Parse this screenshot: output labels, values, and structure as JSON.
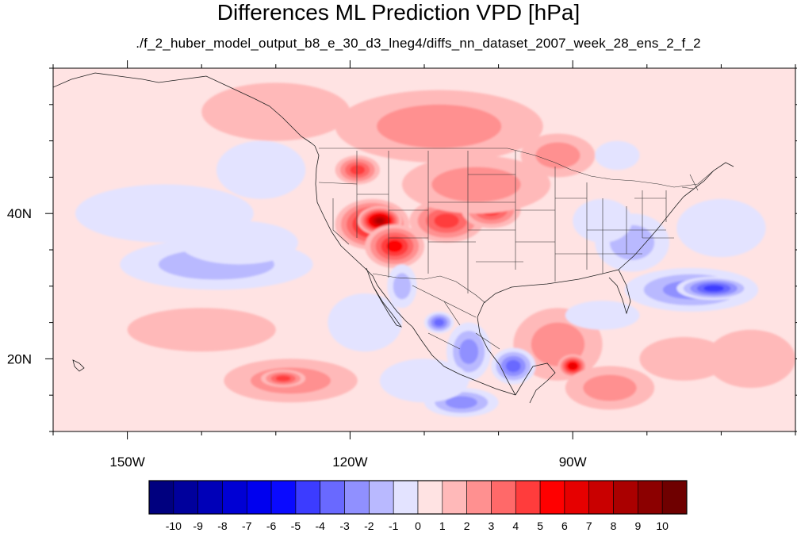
{
  "title": "Differences ML Prediction VPD [hPa]",
  "subtitle": "./f_2_huber_model_output_b8_e_30_d3_lneg4/diffs_nn_dataset_2007_week_28_ens_2_f_2",
  "map": {
    "lon_range": [
      -160,
      -60
    ],
    "lat_range": [
      10,
      60
    ],
    "lon_ticks": [
      {
        "value": -150,
        "label": "150W"
      },
      {
        "value": -120,
        "label": "120W"
      },
      {
        "value": -90,
        "label": "90W"
      }
    ],
    "lat_ticks": [
      {
        "value": 40,
        "label": "40N"
      },
      {
        "value": 20,
        "label": "20N"
      }
    ],
    "minor_lon_step": 10,
    "minor_lat_step": 5,
    "background_value": 0.5
  },
  "colorbar": {
    "labels": [
      "-10",
      "-9",
      "-8",
      "-7",
      "-6",
      "-5",
      "-4",
      "-3",
      "-2",
      "-1",
      "0",
      "1",
      "2",
      "3",
      "4",
      "5",
      "6",
      "7",
      "8",
      "9",
      "10"
    ],
    "colors": [
      "#00007f",
      "#00009c",
      "#0000b8",
      "#0000d4",
      "#0000ef",
      "#0a0aff",
      "#3c3cff",
      "#6969ff",
      "#9090ff",
      "#b9b9ff",
      "#e3e3ff",
      "#ffe3e3",
      "#ffb9b9",
      "#ff9090",
      "#ff6969",
      "#ff3c3c",
      "#ff0000",
      "#e60000",
      "#c90000",
      "#aa0000",
      "#8c0000",
      "#6f0000"
    ]
  },
  "field_blobs": [
    {
      "lon": -117,
      "lat": 38.5,
      "rx": 5,
      "ry": 3.5,
      "v": 6
    },
    {
      "lon": -116,
      "lat": 39,
      "rx": 3,
      "ry": 2,
      "v": 8
    },
    {
      "lon": -114,
      "lat": 35.5,
      "rx": 4,
      "ry": 3,
      "v": 5
    },
    {
      "lon": -107,
      "lat": 39,
      "rx": 5,
      "ry": 3,
      "v": 4
    },
    {
      "lon": -101,
      "lat": 40.5,
      "rx": 4,
      "ry": 2.5,
      "v": 4
    },
    {
      "lon": -119,
      "lat": 46,
      "rx": 3,
      "ry": 2,
      "v": 4
    },
    {
      "lon": -103,
      "lat": 44,
      "rx": 10,
      "ry": 4,
      "v": 2
    },
    {
      "lon": -108,
      "lat": 52,
      "rx": 14,
      "ry": 5,
      "v": 2
    },
    {
      "lon": -130,
      "lat": 54,
      "rx": 10,
      "ry": 4,
      "v": 1
    },
    {
      "lon": -92,
      "lat": 22,
      "rx": 6,
      "ry": 5,
      "v": 2
    },
    {
      "lon": -90,
      "lat": 19,
      "rx": 2,
      "ry": 1.6,
      "v": 6
    },
    {
      "lon": -85,
      "lat": 16,
      "rx": 6,
      "ry": 3,
      "v": 2
    },
    {
      "lon": -128,
      "lat": 17,
      "rx": 9,
      "ry": 3,
      "v": 2
    },
    {
      "lon": -129,
      "lat": 17.3,
      "rx": 3,
      "ry": 1.2,
      "v": 4
    },
    {
      "lon": -92,
      "lat": 48,
      "rx": 5,
      "ry": 3,
      "v": 2
    },
    {
      "lon": -75,
      "lat": 20,
      "rx": 6,
      "ry": 3,
      "v": 1
    },
    {
      "lon": -66,
      "lat": 20,
      "rx": 6,
      "ry": 4,
      "v": 1
    },
    {
      "lon": -140,
      "lat": 24,
      "rx": 10,
      "ry": 3,
      "v": 1
    },
    {
      "lon": -74,
      "lat": 29.5,
      "rx": 9,
      "ry": 3,
      "v": -3
    },
    {
      "lon": -71,
      "lat": 29.7,
      "rx": 5,
      "ry": 1.6,
      "v": -5
    },
    {
      "lon": -82,
      "lat": 36,
      "rx": 5,
      "ry": 4,
      "v": -2
    },
    {
      "lon": -86,
      "lat": 39,
      "rx": 4,
      "ry": 3,
      "v": -1
    },
    {
      "lon": -70,
      "lat": 38,
      "rx": 6,
      "ry": 4,
      "v": -1
    },
    {
      "lon": -104,
      "lat": 21,
      "rx": 3,
      "ry": 4,
      "v": -3
    },
    {
      "lon": -108,
      "lat": 25,
      "rx": 2,
      "ry": 1.5,
      "v": -4
    },
    {
      "lon": -98,
      "lat": 19,
      "rx": 3,
      "ry": 2.5,
      "v": -4
    },
    {
      "lon": -105,
      "lat": 14,
      "rx": 5,
      "ry": 2,
      "v": -3
    },
    {
      "lon": -113,
      "lat": 30,
      "rx": 2,
      "ry": 3,
      "v": -2
    },
    {
      "lon": -138,
      "lat": 33,
      "rx": 13,
      "ry": 3.5,
      "v": -2
    },
    {
      "lon": -135,
      "lat": 36,
      "rx": 8,
      "ry": 3,
      "v": -1
    },
    {
      "lon": -145,
      "lat": 40,
      "rx": 12,
      "ry": 4,
      "v": -1
    },
    {
      "lon": -118,
      "lat": 25,
      "rx": 5,
      "ry": 4,
      "v": -1
    },
    {
      "lon": -110,
      "lat": 17,
      "rx": 6,
      "ry": 3,
      "v": -1
    },
    {
      "lon": -132,
      "lat": 46,
      "rx": 6,
      "ry": 4,
      "v": -1
    },
    {
      "lon": -84,
      "lat": 48,
      "rx": 3,
      "ry": 2,
      "v": -1
    },
    {
      "lon": -86,
      "lat": 26,
      "rx": 5,
      "ry": 2,
      "v": -1
    }
  ]
}
